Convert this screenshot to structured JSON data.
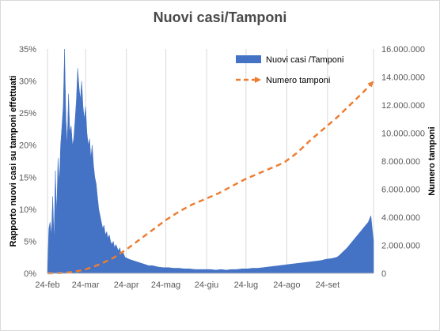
{
  "chart_data": {
    "type": "area",
    "title": "Nuovi casi/Tamponi",
    "ylabel": "Rapporto nuovi casi su tamponi effettuati",
    "y2label": "Numero tamponi",
    "legend_position": "top-right",
    "grid": "vertical",
    "x_ticks": [
      "24-feb",
      "24-mar",
      "24-apr",
      "24-mag",
      "24-giu",
      "24-lug",
      "24-ago",
      "24-set"
    ],
    "ylim": [
      0,
      0.35
    ],
    "y_ticks": [
      "0%",
      "5%",
      "10%",
      "15%",
      "20%",
      "25%",
      "30%",
      "35%"
    ],
    "y2lim": [
      0,
      16000000
    ],
    "y2_ticks": [
      "0",
      "2.000.000",
      "4.000.000",
      "6.000.000",
      "8.000.000",
      "10.000.000",
      "12.000.000",
      "14.000.000",
      "16.000.000"
    ],
    "series": [
      {
        "name": "Nuovi casi /Tamponi",
        "axis": "left",
        "style": "area",
        "color": "#4472c4",
        "points": [
          [
            0,
            0.0
          ],
          [
            1,
            0.07
          ],
          [
            2,
            0.08
          ],
          [
            3,
            0.06
          ],
          [
            4,
            0.12
          ],
          [
            5,
            0.05
          ],
          [
            6,
            0.16
          ],
          [
            7,
            0.09
          ],
          [
            8,
            0.18
          ],
          [
            9,
            0.14
          ],
          [
            10,
            0.2
          ],
          [
            11,
            0.23
          ],
          [
            12,
            0.26
          ],
          [
            13,
            0.35
          ],
          [
            14,
            0.24
          ],
          [
            15,
            0.2
          ],
          [
            16,
            0.28
          ],
          [
            17,
            0.22
          ],
          [
            18,
            0.23
          ],
          [
            19,
            0.2
          ],
          [
            20,
            0.21
          ],
          [
            21,
            0.24
          ],
          [
            22,
            0.27
          ],
          [
            23,
            0.32
          ],
          [
            24,
            0.29
          ],
          [
            25,
            0.27
          ],
          [
            26,
            0.3
          ],
          [
            27,
            0.26
          ],
          [
            28,
            0.24
          ],
          [
            29,
            0.26
          ],
          [
            30,
            0.22
          ],
          [
            31,
            0.2
          ],
          [
            32,
            0.21
          ],
          [
            33,
            0.18
          ],
          [
            34,
            0.2
          ],
          [
            35,
            0.17
          ],
          [
            36,
            0.15
          ],
          [
            37,
            0.14
          ],
          [
            38,
            0.12
          ],
          [
            39,
            0.1
          ],
          [
            40,
            0.09
          ],
          [
            41,
            0.08
          ],
          [
            42,
            0.07
          ],
          [
            43,
            0.075
          ],
          [
            44,
            0.06
          ],
          [
            45,
            0.065
          ],
          [
            46,
            0.055
          ],
          [
            47,
            0.06
          ],
          [
            48,
            0.05
          ],
          [
            49,
            0.045
          ],
          [
            50,
            0.05
          ],
          [
            51,
            0.04
          ],
          [
            52,
            0.045
          ],
          [
            53,
            0.04
          ],
          [
            54,
            0.035
          ],
          [
            55,
            0.04
          ],
          [
            56,
            0.03
          ],
          [
            57,
            0.035
          ],
          [
            58,
            0.03
          ],
          [
            59,
            0.025
          ],
          [
            62,
            0.022
          ],
          [
            65,
            0.02
          ],
          [
            68,
            0.018
          ],
          [
            71,
            0.016
          ],
          [
            74,
            0.014
          ],
          [
            77,
            0.012
          ],
          [
            80,
            0.012
          ],
          [
            84,
            0.01
          ],
          [
            88,
            0.009
          ],
          [
            92,
            0.009
          ],
          [
            96,
            0.008
          ],
          [
            100,
            0.008
          ],
          [
            104,
            0.007
          ],
          [
            108,
            0.007
          ],
          [
            112,
            0.006
          ],
          [
            116,
            0.006
          ],
          [
            120,
            0.006
          ],
          [
            124,
            0.006
          ],
          [
            128,
            0.005
          ],
          [
            132,
            0.006
          ],
          [
            136,
            0.005
          ],
          [
            140,
            0.006
          ],
          [
            144,
            0.006
          ],
          [
            148,
            0.007
          ],
          [
            152,
            0.007
          ],
          [
            156,
            0.008
          ],
          [
            160,
            0.008
          ],
          [
            164,
            0.009
          ],
          [
            168,
            0.01
          ],
          [
            172,
            0.011
          ],
          [
            176,
            0.012
          ],
          [
            180,
            0.013
          ],
          [
            184,
            0.014
          ],
          [
            188,
            0.015
          ],
          [
            192,
            0.016
          ],
          [
            196,
            0.017
          ],
          [
            200,
            0.018
          ],
          [
            204,
            0.019
          ],
          [
            208,
            0.02
          ],
          [
            212,
            0.022
          ],
          [
            216,
            0.023
          ],
          [
            220,
            0.025
          ],
          [
            222,
            0.028
          ],
          [
            224,
            0.032
          ],
          [
            226,
            0.036
          ],
          [
            228,
            0.04
          ],
          [
            230,
            0.045
          ],
          [
            232,
            0.05
          ],
          [
            234,
            0.055
          ],
          [
            236,
            0.06
          ],
          [
            238,
            0.065
          ],
          [
            240,
            0.07
          ],
          [
            242,
            0.075
          ],
          [
            244,
            0.08
          ],
          [
            246,
            0.09
          ],
          [
            247,
            0.07
          ],
          [
            248,
            0.05
          ]
        ]
      },
      {
        "name": "Numero tamponi",
        "axis": "right",
        "style": "dashed-line",
        "color": "#ed7d31",
        "points": [
          [
            0,
            0
          ],
          [
            10,
            20000
          ],
          [
            20,
            100000
          ],
          [
            29,
            280000
          ],
          [
            40,
            650000
          ],
          [
            50,
            1100000
          ],
          [
            60,
            1700000
          ],
          [
            70,
            2400000
          ],
          [
            80,
            3100000
          ],
          [
            90,
            3800000
          ],
          [
            100,
            4400000
          ],
          [
            110,
            4900000
          ],
          [
            120,
            5300000
          ],
          [
            130,
            5700000
          ],
          [
            140,
            6200000
          ],
          [
            150,
            6700000
          ],
          [
            160,
            7100000
          ],
          [
            170,
            7500000
          ],
          [
            180,
            7900000
          ],
          [
            190,
            8600000
          ],
          [
            200,
            9500000
          ],
          [
            210,
            10300000
          ],
          [
            220,
            11100000
          ],
          [
            230,
            12000000
          ],
          [
            240,
            12900000
          ],
          [
            248,
            13700000
          ]
        ]
      }
    ]
  }
}
